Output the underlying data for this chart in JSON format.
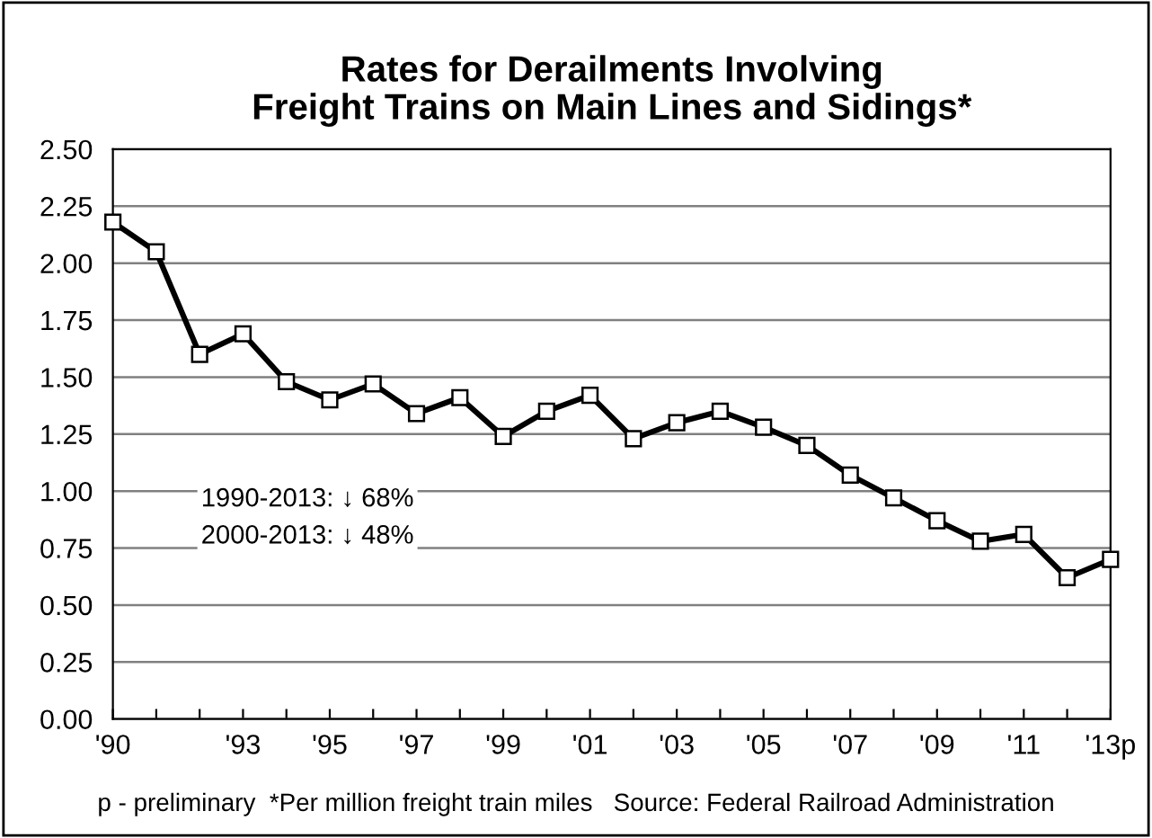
{
  "chart_data": {
    "type": "line",
    "title": "Rates for Derailments Involving\nFreight Trains on Main Lines and Sidings*",
    "categories": [
      "'90",
      null,
      null,
      "'93",
      null,
      "'95",
      null,
      "'97",
      null,
      "'99",
      null,
      "'01",
      null,
      "'03",
      null,
      "'05",
      null,
      "'07",
      null,
      "'09",
      null,
      "'11",
      null,
      "'13p"
    ],
    "series": [
      {
        "color": "#000000",
        "values": [
          2.18,
          2.05,
          1.6,
          1.69,
          1.48,
          1.4,
          1.47,
          1.34,
          1.41,
          1.24,
          1.35,
          1.42,
          1.23,
          1.3,
          1.35,
          1.28,
          1.2,
          1.07,
          0.97,
          0.87,
          0.78,
          0.81,
          0.62,
          0.7
        ]
      }
    ],
    "ylim": [
      0,
      2.5
    ],
    "yticks": [
      {
        "value": 0,
        "label": "0.00"
      },
      {
        "value": 0.25,
        "label": "0.25"
      },
      {
        "value": 0.5,
        "label": "0.50"
      },
      {
        "value": 0.75,
        "label": "0.75"
      },
      {
        "value": 1.0,
        "label": "1.00"
      },
      {
        "value": 1.25,
        "label": "1.25"
      },
      {
        "value": 1.5,
        "label": "1.50"
      },
      {
        "value": 1.75,
        "label": "1.75"
      },
      {
        "value": 2.0,
        "label": "2.00"
      },
      {
        "value": 2.25,
        "label": "2.25"
      },
      {
        "value": 2.5,
        "label": "2.50"
      }
    ],
    "grid": "y",
    "marker": "square",
    "line_style": "solid",
    "annotations": [
      "1990-2013: ↓ 68%",
      "2000-2013: ↓ 48%",
      "p - preliminary  *Per million freight train miles   Source: Federal Railroad Administration"
    ]
  }
}
